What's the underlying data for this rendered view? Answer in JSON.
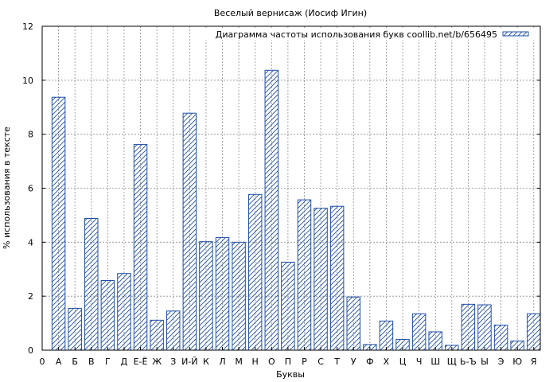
{
  "chart_data": {
    "type": "bar",
    "title": "Веселый вернисаж (Иосиф Игин)",
    "xlabel": "Буквы",
    "ylabel": "% использования в тексте",
    "legend_label": "Диаграмма частоты использования букв coollib.net/b/656495",
    "legend_position": "top-right",
    "grid": true,
    "ylim": [
      0,
      12
    ],
    "yticks": [
      "0",
      "2",
      "4",
      "6",
      "8",
      "10",
      "12"
    ],
    "x_origin_label": "0",
    "categories": [
      "А",
      "Б",
      "В",
      "Г",
      "Д",
      "Е-Ё",
      "Ж",
      "З",
      "И-Й",
      "К",
      "Л",
      "М",
      "Н",
      "О",
      "П",
      "Р",
      "С",
      "Т",
      "У",
      "Ф",
      "Х",
      "Ц",
      "Ч",
      "Ш",
      "Щ",
      "Ь-Ъ",
      "Ы",
      "Э",
      "Ю",
      "Я"
    ],
    "values": [
      9.37,
      1.55,
      4.88,
      2.58,
      2.84,
      7.62,
      1.11,
      1.45,
      8.78,
      4.02,
      4.17,
      4.0,
      5.77,
      10.37,
      3.26,
      5.57,
      5.26,
      5.33,
      1.97,
      0.21,
      1.08,
      0.4,
      1.35,
      0.68,
      0.18,
      1.7,
      1.68,
      0.93,
      0.34,
      1.35
    ],
    "bar_color": "#1f4fa8"
  }
}
